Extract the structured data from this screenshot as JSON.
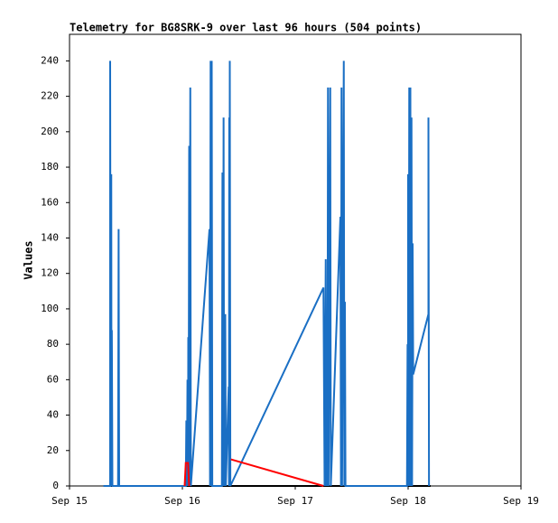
{
  "chart_data": {
    "type": "line",
    "title": "Telemetry for BG8SRK-9 over last 96 hours (504 points)",
    "y_label": "Values",
    "xlim": [
      15,
      19
    ],
    "xticks": [
      {
        "value": 15,
        "label": "Sep 15"
      },
      {
        "value": 16,
        "label": "Sep 16"
      },
      {
        "value": 17,
        "label": "Sep 17"
      },
      {
        "value": 18,
        "label": "Sep 18"
      },
      {
        "value": 19,
        "label": "Sep 19"
      }
    ],
    "ylim": [
      0,
      255
    ],
    "yticks": [
      0,
      20,
      40,
      60,
      80,
      100,
      120,
      140,
      160,
      180,
      200,
      220,
      240
    ],
    "series": [
      {
        "color": "#000000",
        "x": [
          15.3,
          18.2
        ],
        "values": [
          0,
          0
        ]
      },
      {
        "color": "#1a6fc4",
        "x": [
          15.3,
          15.36,
          15.36,
          15.365,
          15.37,
          15.372,
          15.375,
          15.38,
          15.43,
          15.435,
          15.44,
          16.03,
          16.035,
          16.04,
          16.045,
          16.05,
          16.052,
          16.055,
          16.06,
          16.063,
          16.07,
          16.075,
          16.24,
          16.245,
          16.25,
          16.255,
          16.26,
          16.265,
          16.35,
          16.355,
          16.36,
          16.365,
          16.37,
          16.38,
          16.385,
          16.41,
          16.413,
          16.415,
          16.418,
          16.42,
          16.425,
          17.25,
          17.26,
          17.27,
          17.275,
          17.28,
          17.285,
          17.29,
          17.295,
          17.31,
          17.315,
          17.4,
          17.405,
          17.41,
          17.415,
          17.43,
          17.435,
          17.44,
          17.445,
          17.99,
          17.995,
          18.0,
          18.0,
          18.005,
          18.01,
          18.015,
          18.02,
          18.025,
          18.03,
          18.035,
          18.04,
          18.045,
          18.18,
          18.18,
          18.185
        ],
        "values": [
          0,
          0,
          240,
          0,
          176,
          0,
          88,
          0,
          0,
          145,
          0,
          0,
          37,
          0,
          60,
          0,
          84,
          0,
          192,
          0,
          225,
          0,
          145,
          0,
          240,
          0,
          240,
          0,
          0,
          177,
          0,
          208,
          0,
          97,
          0,
          56,
          0,
          208,
          0,
          240,
          0,
          112,
          0,
          128,
          0,
          80,
          0,
          225,
          0,
          225,
          0,
          152,
          0,
          225,
          0,
          240,
          0,
          104,
          0,
          0,
          80,
          0,
          176,
          0,
          225,
          0,
          225,
          0,
          208,
          0,
          137,
          63,
          97,
          208,
          0
        ]
      },
      {
        "color": "#ff0000",
        "x": [
          16.02,
          16.03,
          16.05,
          16.06,
          null,
          16.43,
          17.25
        ],
        "values": [
          0,
          13,
          13,
          0,
          null,
          15,
          0
        ]
      }
    ]
  }
}
